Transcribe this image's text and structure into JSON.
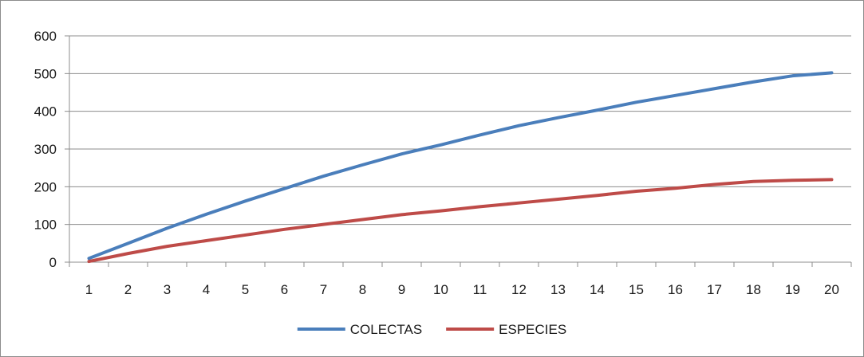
{
  "chart_data": {
    "type": "line",
    "title": "",
    "xlabel": "",
    "ylabel": "",
    "categories": [
      "1",
      "2",
      "3",
      "4",
      "5",
      "6",
      "7",
      "8",
      "9",
      "10",
      "11",
      "12",
      "13",
      "14",
      "15",
      "16",
      "17",
      "18",
      "19",
      "20"
    ],
    "ylim": [
      0,
      600
    ],
    "yticks": [
      0,
      100,
      200,
      300,
      400,
      500,
      600
    ],
    "grid": "horizontal",
    "legend_position": "bottom",
    "series": [
      {
        "name": "COLECTAS",
        "color": "#4a7ebb",
        "values": [
          10,
          50,
          90,
          127,
          162,
          195,
          228,
          258,
          287,
          311,
          337,
          362,
          383,
          403,
          424,
          442,
          460,
          478,
          494,
          502
        ]
      },
      {
        "name": "ESPECIES",
        "color": "#be4b48",
        "values": [
          2,
          23,
          42,
          57,
          72,
          87,
          100,
          113,
          126,
          136,
          147,
          157,
          167,
          177,
          188,
          196,
          206,
          214,
          217,
          219
        ]
      }
    ]
  }
}
